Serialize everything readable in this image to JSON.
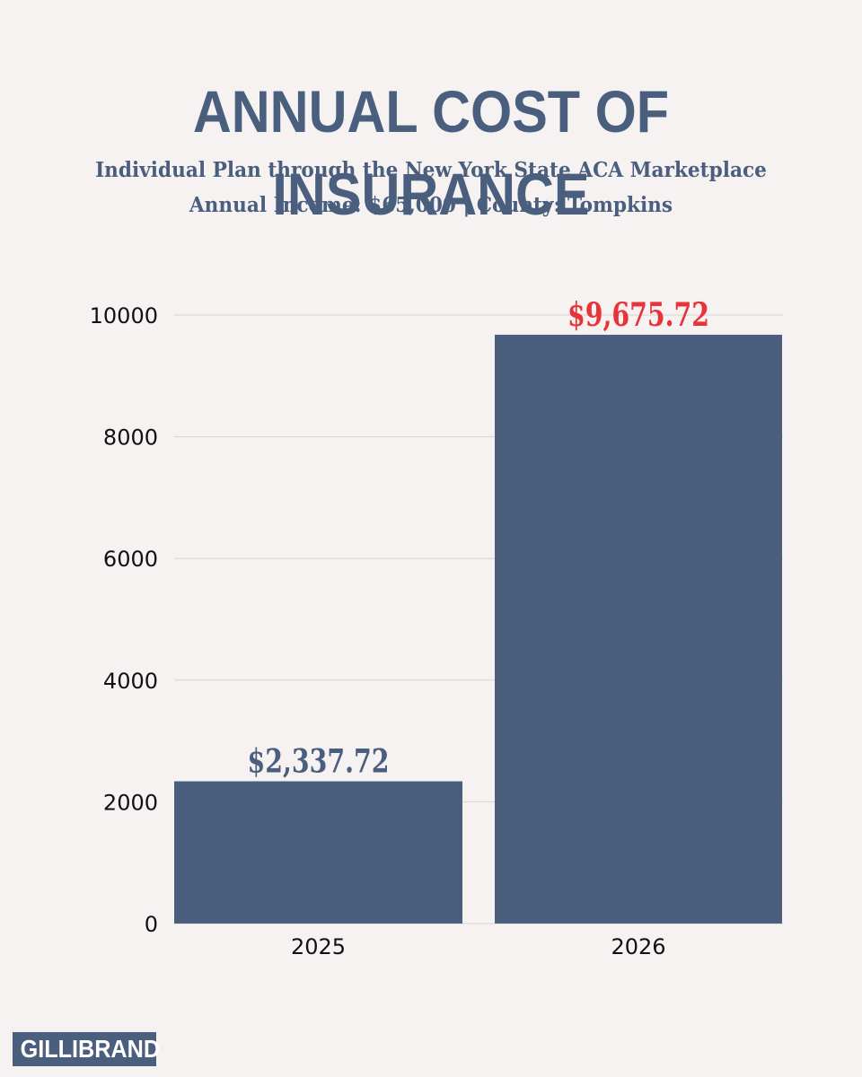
{
  "header": {
    "title": "ANNUAL COST OF INSURANCE",
    "subtitle_line1": "Individual Plan through the New York State ACA Marketplace",
    "subtitle_line2": "Annual Income: $65,000 | County: Tompkins"
  },
  "chart_data": {
    "type": "bar",
    "categories": [
      "2025",
      "2026"
    ],
    "values": [
      2337.72,
      9675.72
    ],
    "data_labels": [
      "$2,337.72",
      "$9,675.72"
    ],
    "data_label_colors": [
      "#4a5e7e",
      "#e8333a"
    ],
    "bar_color": "#4a5e7e",
    "ylim": [
      0,
      10000
    ],
    "yticks": [
      0,
      2000,
      4000,
      6000,
      8000,
      10000
    ],
    "title": "ANNUAL COST OF INSURANCE",
    "xlabel": "",
    "ylabel": "",
    "grid": true
  },
  "branding": {
    "logo_text": "GILLIBRAND"
  }
}
